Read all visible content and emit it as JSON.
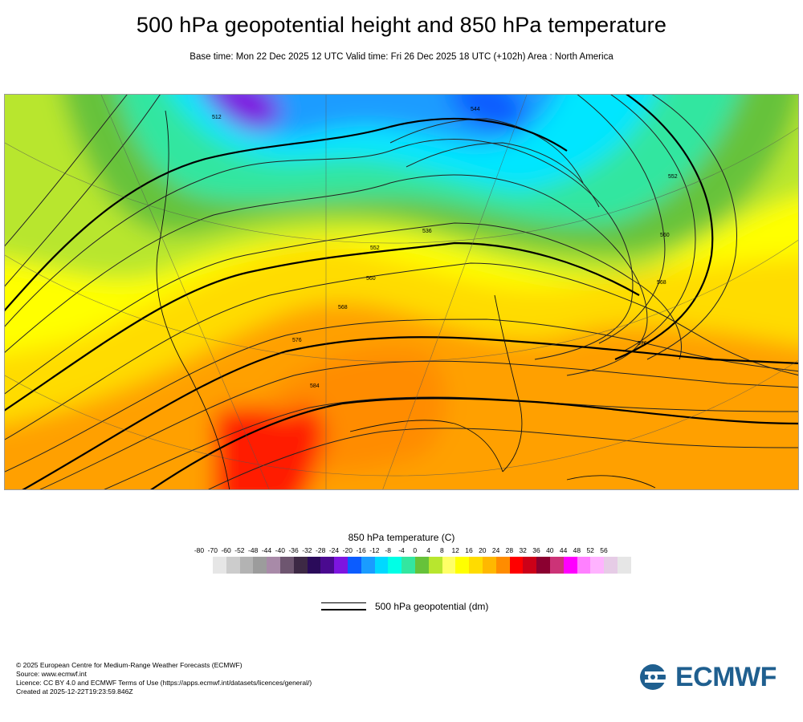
{
  "header": {
    "title": "500 hPa geopotential height and 850 hPa temperature",
    "subtitle": "Base time: Mon 22 Dec 2025 12 UTC Valid time: Fri 26 Dec 2025 18 UTC (+102h) Area : North America"
  },
  "map": {
    "contour_labels": [
      "552",
      "560",
      "568",
      "576",
      "584",
      "512",
      "536",
      "544",
      "552",
      "560",
      "568",
      "576"
    ]
  },
  "colorbar": {
    "title": "850 hPa temperature (C)",
    "ticks": [
      "-80",
      "-70",
      "-60",
      "-52",
      "-48",
      "-44",
      "-40",
      "-36",
      "-32",
      "-28",
      "-24",
      "-20",
      "-16",
      "-12",
      "-8",
      "-4",
      "0",
      "4",
      "8",
      "12",
      "16",
      "20",
      "24",
      "28",
      "32",
      "36",
      "40",
      "44",
      "48",
      "52",
      "56"
    ],
    "colors": [
      "#e6e6e6",
      "#cccccc",
      "#b3b3b3",
      "#9c9c9c",
      "#a88aa8",
      "#6e5670",
      "#3d2945",
      "#2a0b5a",
      "#4a0a8f",
      "#7e15e0",
      "#0b5cff",
      "#1a9cff",
      "#00d9ff",
      "#00ffe6",
      "#33e6a0",
      "#66c23a",
      "#b8e62e",
      "#ffff66",
      "#ffff00",
      "#ffdc00",
      "#ffb800",
      "#ff8c00",
      "#ff0000",
      "#cc0018",
      "#8b0030",
      "#cc3377",
      "#ff00ff",
      "#ff80ff",
      "#ffb3ff",
      "#e6cce6",
      "#e6e6e6"
    ]
  },
  "legend": {
    "label": "500 hPa geopotential (dm)"
  },
  "footer": {
    "lines": [
      "© 2025 European Centre for Medium-Range Weather Forecasts (ECMWF)",
      "Source: www.ecmwf.int",
      "Licence: CC BY 4.0 and ECMWF Terms of Use (https://apps.ecmwf.int/datasets/licences/general/)",
      "Created at 2025-12-22T19:23:59.846Z"
    ]
  },
  "logo": {
    "text": "ECMWF",
    "color": "#1f5f8f"
  }
}
